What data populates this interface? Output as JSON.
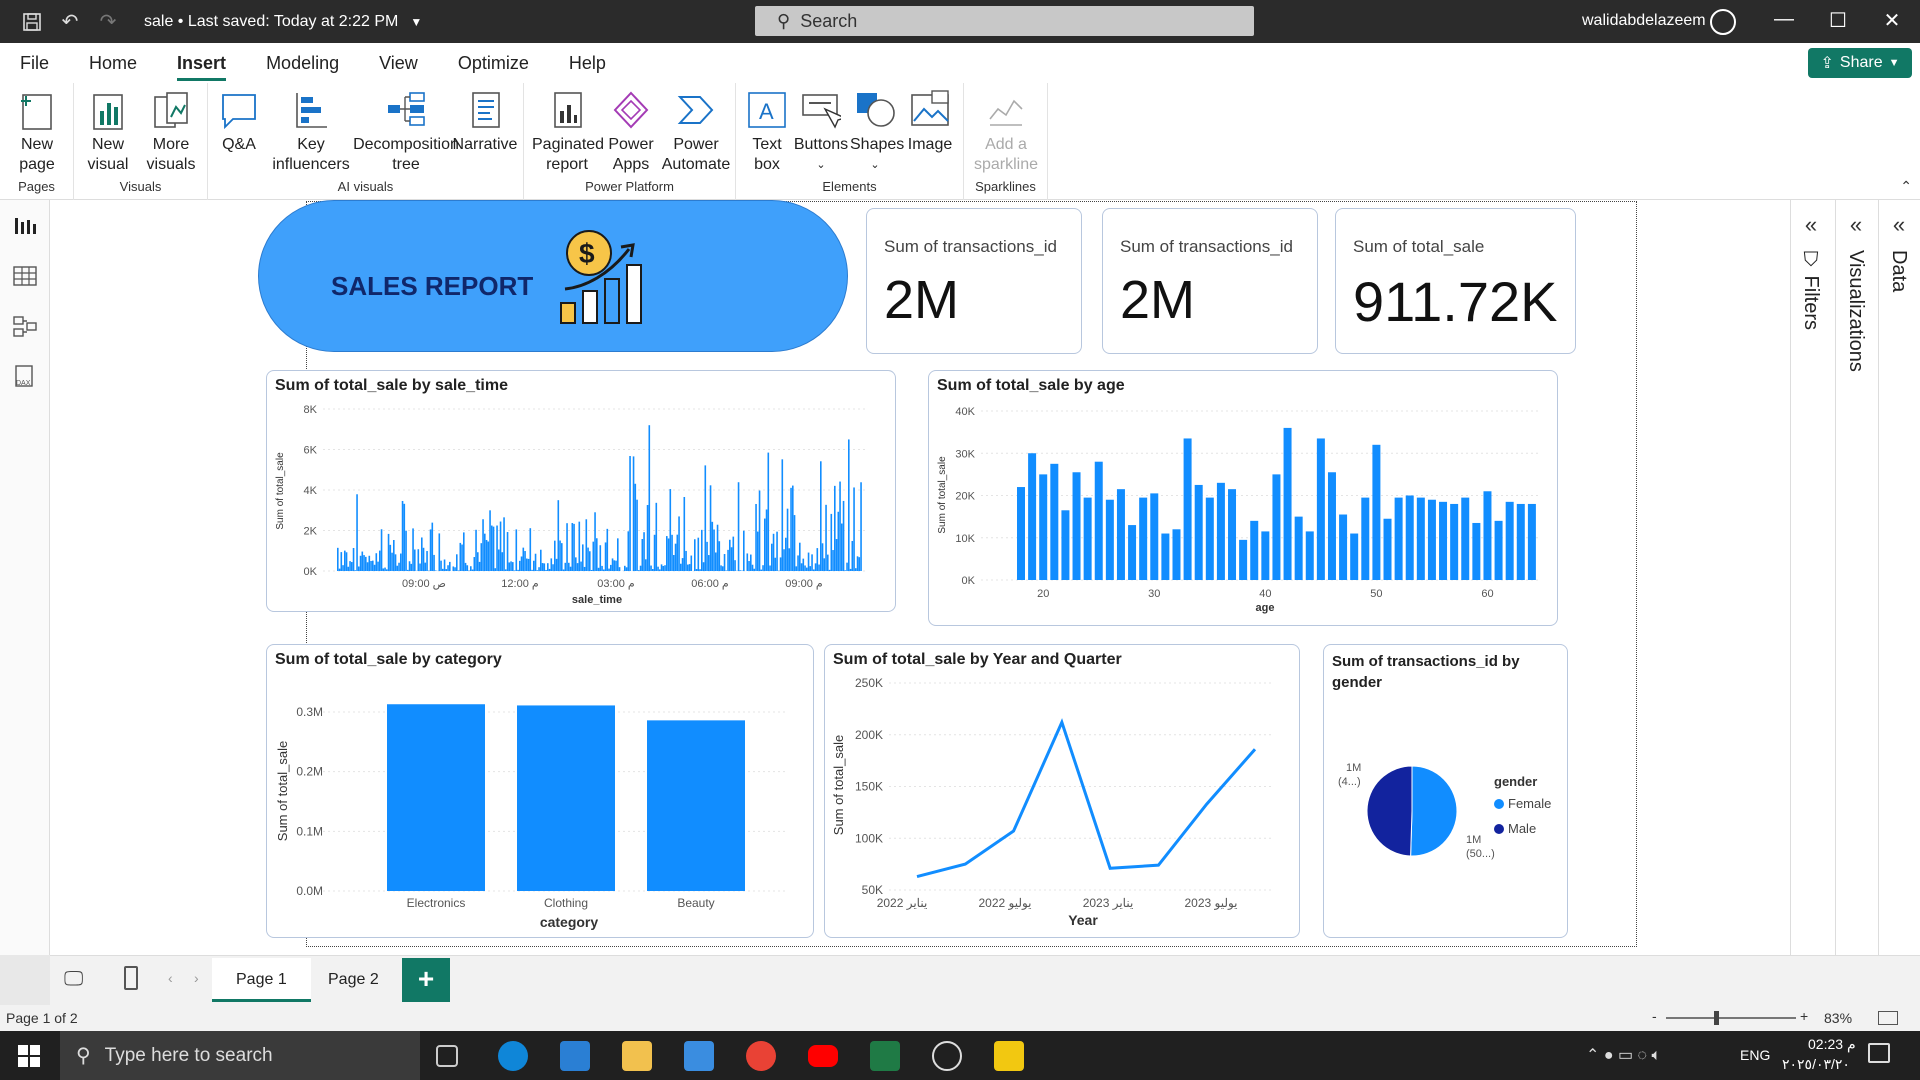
{
  "titlebar": {
    "doc_title": "sale • Last saved: Today at 2:22 PM",
    "search_placeholder": "Search",
    "user": "walidabdelazeem"
  },
  "menu": [
    "File",
    "Home",
    "Insert",
    "Modeling",
    "View",
    "Optimize",
    "Help"
  ],
  "share_label": "Share",
  "ribbon": {
    "pages": {
      "label": "Pages",
      "new_page": "New\npage"
    },
    "visuals": {
      "label": "Visuals",
      "new_visual": "New\nvisual",
      "more_visuals": "More\nvisuals"
    },
    "ai_visuals": {
      "label": "AI visuals",
      "qa": "Q&A",
      "key_influencers": "Key\ninfluencers",
      "decomposition_tree": "Decomposition\ntree",
      "narrative": "Narrative"
    },
    "power_platform": {
      "label": "Power Platform",
      "paginated_report": "Paginated\nreport",
      "power_apps": "Power\nApps",
      "power_automate": "Power\nAutomate"
    },
    "elements": {
      "label": "Elements",
      "text_box": "Text\nbox",
      "buttons": "Buttons",
      "shapes": "Shapes",
      "image": "Image"
    },
    "sparklines": {
      "label": "Sparklines",
      "add_sparkline": "Add a\nsparkline"
    }
  },
  "report": {
    "banner_title": "SALES REPORT",
    "cards": [
      {
        "title": "Sum of transactions_id",
        "value": "2M"
      },
      {
        "title": "Sum of transactions_id",
        "value": "2M"
      },
      {
        "title": "Sum of total_sale",
        "value": "911.72K"
      }
    ]
  },
  "chart_data": [
    {
      "type": "bar",
      "title": "Sum of total_sale by sale_time",
      "xlabel": "sale_time",
      "ylabel": "Sum of total_sale",
      "y_ticks": [
        "8K",
        "6K",
        "4K",
        "2K",
        "0K"
      ],
      "x_ticks": [
        "09:00 ص",
        "12:00 م",
        "03:00 م",
        "06:00 م",
        "09:00 م"
      ],
      "ylim": [
        0,
        8000
      ],
      "color": "#118dff"
    },
    {
      "type": "bar",
      "title": "Sum of total_sale by age",
      "xlabel": "age",
      "ylabel": "Sum of total_sale",
      "y_ticks": [
        "40K",
        "30K",
        "20K",
        "10K",
        "0K"
      ],
      "x_ticks": [
        "20",
        "30",
        "40",
        "50",
        "60"
      ],
      "ylim": [
        0,
        40000
      ],
      "x": [
        18,
        19,
        20,
        21,
        22,
        23,
        24,
        25,
        26,
        27,
        28,
        29,
        30,
        31,
        32,
        33,
        34,
        35,
        36,
        37,
        38,
        39,
        40,
        41,
        42,
        43,
        44,
        45,
        46,
        47,
        48,
        49,
        50,
        51,
        52,
        53,
        54,
        55,
        56,
        57,
        58,
        59,
        60,
        61,
        62,
        63,
        64
      ],
      "values": [
        22000,
        30000,
        25000,
        27500,
        16500,
        25500,
        19500,
        28000,
        19000,
        21500,
        13000,
        19500,
        20500,
        11000,
        12000,
        33500,
        22500,
        19500,
        23000,
        21500,
        9500,
        14000,
        11500,
        25000,
        36000,
        15000,
        11500,
        33500,
        25500,
        15500,
        11000,
        19500,
        32000,
        14500,
        19500,
        20000,
        19500,
        19000,
        18500,
        18000,
        19500,
        13500,
        21000,
        14000,
        18500,
        18000,
        18000
      ],
      "color": "#118dff"
    },
    {
      "type": "bar",
      "title": "Sum of total_sale by category",
      "xlabel": "category",
      "ylabel": "Sum of total_sale",
      "y_ticks": [
        "0.3M",
        "0.2M",
        "0.1M",
        "0.0M"
      ],
      "categories": [
        "Electronics",
        "Clothing",
        "Beauty"
      ],
      "values": [
        313000,
        311000,
        286000
      ],
      "ylim": [
        0,
        350000
      ],
      "color": "#118dff"
    },
    {
      "type": "line",
      "title": "Sum of total_sale by Year and Quarter",
      "xlabel": "Year",
      "ylabel": "Sum of total_sale",
      "y_ticks": [
        "250K",
        "200K",
        "150K",
        "100K",
        "50K"
      ],
      "x_ticks": [
        "2022 يناير",
        "2022 يوليو",
        "2023 يناير",
        "2023 يوليو"
      ],
      "ylim": [
        50000,
        250000
      ],
      "values": [
        63000,
        75000,
        107000,
        212000,
        71000,
        74000,
        133000,
        186000
      ],
      "color": "#118dff"
    },
    {
      "type": "pie",
      "title": "Sum of transactions_id by gender",
      "legend_title": "gender",
      "slices": [
        {
          "name": "Female",
          "value": 50.5,
          "color": "#118dff",
          "label": "1M\n(50...)"
        },
        {
          "name": "Male",
          "value": 49.5,
          "color": "#12239e",
          "label": "1M\n(4...)"
        }
      ]
    }
  ],
  "pages": [
    "Page 1",
    "Page 2"
  ],
  "status": {
    "page_count": "Page 1 of 2",
    "zoom": "83%"
  },
  "taskbar": {
    "search_placeholder": "Type here to search",
    "lang": "ENG",
    "time": "02:23 م",
    "date": "٢٠٢٥/٠٣/٢٠"
  }
}
